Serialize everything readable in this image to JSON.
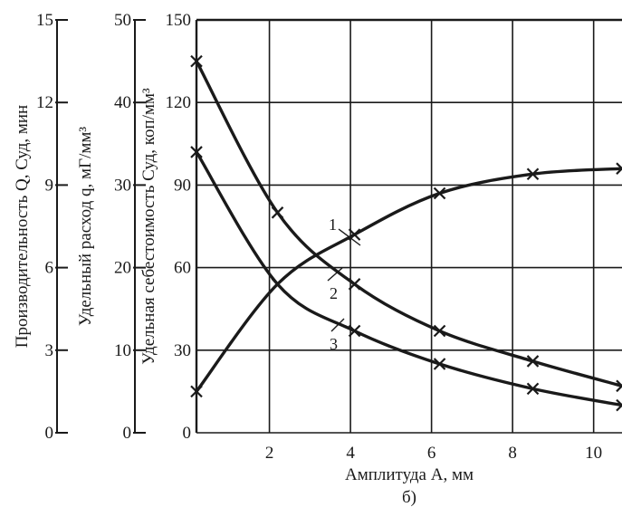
{
  "chart_data": {
    "type": "line",
    "caption": "б)",
    "xlabel": "Амплитуда А, мм",
    "x_ticks": [
      "2",
      "4",
      "6",
      "8",
      "10"
    ],
    "xlim": [
      0.2,
      10.7
    ],
    "y_axes": [
      {
        "id": "cost",
        "label": "Удельная себестоимость Суд, коп/мм³",
        "ylim": [
          0,
          150
        ],
        "ticks": [
          "0",
          "30",
          "60",
          "90",
          "120",
          "150"
        ]
      },
      {
        "id": "consumption",
        "label": "Удельный расход q, мГ/мм³",
        "ylim": [
          0,
          50
        ],
        "ticks": [
          "0",
          "10",
          "20",
          "30",
          "40",
          "50"
        ]
      },
      {
        "id": "productivity",
        "label": "Производительность Q, Суд, мин",
        "ylim": [
          0,
          15
        ],
        "ticks": [
          "0",
          "3",
          "6",
          "9",
          "12",
          "15"
        ]
      }
    ],
    "grid": true,
    "series": [
      {
        "name": "1",
        "points_x": [
          0.2,
          2.2,
          4.1,
          6.2,
          8.5,
          10.7
        ],
        "points_y": [
          15,
          54,
          72,
          87,
          94,
          96
        ]
      },
      {
        "name": "2",
        "points_x": [
          0.2,
          2.2,
          4.1,
          6.2,
          8.5,
          10.7
        ],
        "points_y": [
          135,
          80,
          54,
          37,
          26,
          17
        ]
      },
      {
        "name": "3",
        "points_x": [
          0.2,
          2.2,
          4.1,
          6.2,
          8.5,
          10.7
        ],
        "points_y": [
          102,
          54,
          37,
          25,
          16,
          10
        ]
      }
    ]
  }
}
